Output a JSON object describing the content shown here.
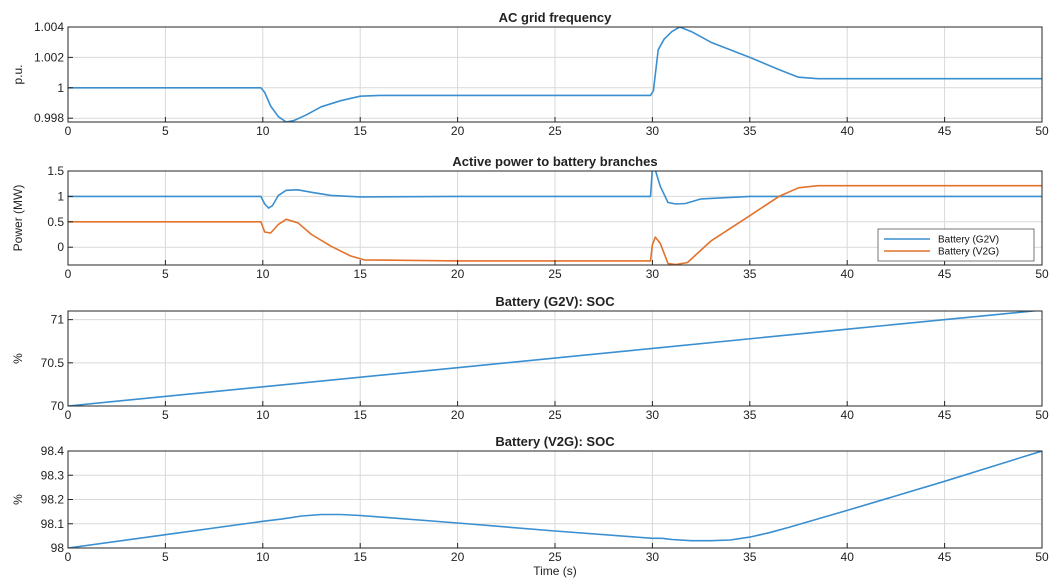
{
  "colors": {
    "g2v": "#3a8fd1",
    "v2g": "#e3722b",
    "grid": "#d9d9d9",
    "axis": "#262626"
  },
  "xlabel": "Time (s)",
  "chart_data": [
    {
      "type": "line",
      "title": "AC grid frequency",
      "ylabel": "p.u.",
      "xlim": [
        0,
        50
      ],
      "ylim": [
        0.99775,
        1.004
      ],
      "xticks": [
        0,
        5,
        10,
        15,
        20,
        25,
        30,
        35,
        40,
        45,
        50
      ],
      "yticks": [
        0.998,
        1,
        1.002,
        1.004
      ],
      "ytick_labels": [
        "0.998",
        "1",
        "1.002",
        "1.004"
      ],
      "grid": true,
      "legend": null,
      "series": [
        {
          "color_key": "g2v",
          "x": [
            0,
            9.9,
            10.1,
            10.4,
            10.8,
            11.2,
            11.6,
            12.2,
            13,
            14,
            15,
            16,
            20,
            25,
            29.9,
            30.05,
            30.3,
            30.6,
            31,
            31.4,
            32,
            33,
            35,
            36.5,
            37.5,
            38.5,
            40,
            45,
            50
          ],
          "y": [
            1.0,
            1.0,
            0.9997,
            0.9988,
            0.9981,
            0.99775,
            0.99785,
            0.9982,
            0.99875,
            0.99915,
            0.99945,
            0.9995,
            0.9995,
            0.9995,
            0.9995,
            0.9998,
            1.0025,
            1.0032,
            1.0037,
            1.004,
            1.0037,
            1.003,
            1.002,
            1.0012,
            1.0007,
            1.0006,
            1.0006,
            1.0006,
            1.0006
          ]
        }
      ]
    },
    {
      "type": "line",
      "title": "Active power to battery branches",
      "ylabel": "Power (MW)",
      "xlim": [
        0,
        50
      ],
      "ylim": [
        -0.35,
        1.5
      ],
      "xticks": [
        0,
        5,
        10,
        15,
        20,
        25,
        30,
        35,
        40,
        45,
        50
      ],
      "yticks": [
        0,
        0.5,
        1,
        1.5
      ],
      "ytick_labels": [
        "0",
        "0.5",
        "1",
        "1.5"
      ],
      "grid": true,
      "legend": {
        "position": "lower-right",
        "entries": [
          "Battery (G2V)",
          "Battery (V2G)"
        ]
      },
      "series": [
        {
          "name": "Battery (G2V)",
          "color_key": "g2v",
          "x": [
            0,
            9.9,
            10.1,
            10.3,
            10.5,
            10.8,
            11.2,
            11.8,
            12.5,
            13.5,
            15,
            20,
            25,
            29.9,
            30.0,
            30.15,
            30.4,
            30.8,
            31.2,
            31.7,
            32.5,
            35,
            40,
            45,
            50
          ],
          "y": [
            1.0,
            1.0,
            0.85,
            0.77,
            0.82,
            1.02,
            1.12,
            1.13,
            1.08,
            1.02,
            0.99,
            1.0,
            1.0,
            1.0,
            1.55,
            1.52,
            1.2,
            0.88,
            0.85,
            0.86,
            0.95,
            1.0,
            1.0,
            1.0,
            1.0
          ]
        },
        {
          "name": "Battery (V2G)",
          "color_key": "v2g",
          "x": [
            0,
            9.9,
            10.1,
            10.4,
            10.8,
            11.2,
            11.8,
            12.5,
            13.5,
            14.5,
            15.2,
            20,
            25,
            29.9,
            30.0,
            30.15,
            30.4,
            30.8,
            31.2,
            31.8,
            33,
            35,
            36.5,
            37.5,
            38.5,
            40,
            45,
            50
          ],
          "y": [
            0.5,
            0.5,
            0.3,
            0.28,
            0.45,
            0.55,
            0.48,
            0.25,
            0.02,
            -0.17,
            -0.25,
            -0.27,
            -0.27,
            -0.27,
            0.05,
            0.2,
            0.08,
            -0.32,
            -0.34,
            -0.3,
            0.12,
            0.62,
            1.0,
            1.17,
            1.21,
            1.21,
            1.21,
            1.21
          ]
        }
      ]
    },
    {
      "type": "line",
      "title": "Battery (G2V): SOC",
      "ylabel": "%",
      "xlim": [
        0,
        50
      ],
      "ylim": [
        70,
        71.1
      ],
      "xticks": [
        0,
        5,
        10,
        15,
        20,
        25,
        30,
        35,
        40,
        45,
        50
      ],
      "yticks": [
        70,
        70.5,
        71
      ],
      "ytick_labels": [
        "70",
        "70.5",
        "71"
      ],
      "grid": true,
      "legend": null,
      "series": [
        {
          "color_key": "g2v",
          "x": [
            0,
            10,
            20,
            30,
            40,
            50
          ],
          "y": [
            70.0,
            70.222,
            70.444,
            70.667,
            70.889,
            71.11
          ]
        }
      ]
    },
    {
      "type": "line",
      "title": "Battery (V2G): SOC",
      "ylabel": "%",
      "xlim": [
        0,
        50
      ],
      "ylim": [
        98,
        98.4
      ],
      "xticks": [
        0,
        5,
        10,
        15,
        20,
        25,
        30,
        35,
        40,
        45,
        50
      ],
      "yticks": [
        98,
        98.1,
        98.2,
        98.3,
        98.4
      ],
      "ytick_labels": [
        "98",
        "98.1",
        "98.2",
        "98.3",
        "98.4"
      ],
      "grid": true,
      "legend": null,
      "series": [
        {
          "color_key": "g2v",
          "x": [
            0,
            5,
            10,
            11,
            12,
            13,
            14,
            15,
            20,
            25,
            30,
            30.5,
            31,
            32,
            33,
            34,
            35,
            36,
            37,
            40,
            45,
            50
          ],
          "y": [
            98.0,
            98.055,
            98.11,
            98.12,
            98.132,
            98.138,
            98.138,
            98.134,
            98.103,
            98.07,
            98.04,
            98.04,
            98.035,
            98.03,
            98.03,
            98.033,
            98.045,
            98.063,
            98.085,
            98.155,
            98.275,
            98.4
          ]
        }
      ]
    }
  ]
}
